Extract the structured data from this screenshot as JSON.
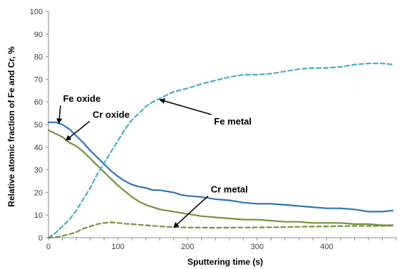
{
  "chart_data": {
    "type": "line",
    "xlabel": "Sputtering time (s)",
    "ylabel": "Relative atomic fraction of Fe and Cr, %",
    "xlim": [
      0,
      500
    ],
    "ylim": [
      0,
      100
    ],
    "x_ticks": [
      0,
      100,
      200,
      300,
      400
    ],
    "y_ticks": [
      0,
      10,
      20,
      30,
      40,
      50,
      60,
      70,
      80,
      90,
      100
    ],
    "grid": false,
    "legend": "none",
    "series": [
      {
        "name": "Fe oxide",
        "color": "#2e75b6",
        "style": "solid",
        "x": [
          0,
          10,
          20,
          30,
          40,
          50,
          60,
          70,
          80,
          90,
          100,
          110,
          120,
          130,
          140,
          150,
          160,
          170,
          180,
          190,
          200,
          220,
          240,
          260,
          280,
          300,
          320,
          340,
          360,
          380,
          400,
          420,
          440,
          460,
          480,
          495
        ],
        "y": [
          51,
          51,
          50,
          48,
          45,
          42,
          38.5,
          35.5,
          32.5,
          29.5,
          27,
          25,
          23.5,
          22.5,
          22,
          21,
          21,
          20.5,
          20,
          19,
          18.5,
          18,
          17,
          16.5,
          15.5,
          15,
          15,
          14.5,
          14,
          13.5,
          13,
          13,
          12.5,
          11.5,
          11.5,
          12
        ]
      },
      {
        "name": "Cr oxide",
        "color": "#76923c",
        "style": "solid",
        "x": [
          0,
          10,
          20,
          30,
          40,
          50,
          60,
          70,
          80,
          90,
          100,
          110,
          120,
          130,
          140,
          150,
          160,
          170,
          180,
          200,
          220,
          240,
          260,
          280,
          300,
          320,
          340,
          360,
          380,
          400,
          420,
          440,
          460,
          480,
          495
        ],
        "y": [
          47.5,
          46,
          44.5,
          42,
          40.5,
          38,
          35,
          32,
          29,
          26,
          23,
          20.5,
          18,
          16,
          14.5,
          13.5,
          12.5,
          12,
          11.5,
          10.5,
          9.5,
          9,
          8.5,
          8,
          8,
          7.5,
          7,
          7,
          6.5,
          6.5,
          6.5,
          6,
          6,
          5.5,
          5.5
        ]
      },
      {
        "name": "Fe metal",
        "color": "#4bacc6",
        "style": "dashed",
        "x": [
          0,
          10,
          20,
          30,
          40,
          50,
          60,
          70,
          80,
          90,
          100,
          110,
          120,
          130,
          140,
          150,
          160,
          170,
          180,
          200,
          220,
          240,
          260,
          280,
          300,
          320,
          340,
          360,
          380,
          400,
          420,
          440,
          460,
          480,
          495
        ],
        "y": [
          0,
          2,
          5,
          8,
          12,
          17,
          22,
          28,
          33,
          38,
          43,
          48,
          52,
          55,
          58,
          60,
          61.5,
          63,
          64.5,
          66,
          68,
          69.5,
          71,
          72,
          72,
          72.5,
          73.5,
          74.5,
          75,
          75,
          75.5,
          76.5,
          77,
          77,
          76.5
        ]
      },
      {
        "name": "Cr metal",
        "color": "#76923c",
        "style": "dashed",
        "x": [
          0,
          10,
          20,
          30,
          40,
          50,
          60,
          70,
          80,
          90,
          100,
          110,
          120,
          140,
          160,
          180,
          200,
          240,
          280,
          320,
          360,
          400,
          440,
          480,
          495
        ],
        "y": [
          0,
          0.2,
          0.8,
          1.5,
          2.5,
          4,
          5,
          6,
          6.5,
          6.8,
          6.5,
          6.2,
          6,
          5.5,
          5,
          4.7,
          4.5,
          4.4,
          4.5,
          4.6,
          4.8,
          5,
          5.2,
          5.2,
          5.3
        ]
      }
    ],
    "annotations": [
      {
        "text": "Fe oxide",
        "target_series": "Fe oxide",
        "label_pos": [
          48,
          60
        ],
        "arrow_to": [
          15,
          50.5
        ]
      },
      {
        "text": "Cr oxide",
        "target_series": "Cr oxide",
        "label_pos": [
          90,
          53
        ],
        "arrow_to": [
          25,
          43
        ]
      },
      {
        "text": "Fe metal",
        "target_series": "Fe metal",
        "label_pos": [
          265,
          50
        ],
        "arrow_to": [
          160,
          61
        ]
      },
      {
        "text": "Cr metal",
        "target_series": "Cr metal",
        "label_pos": [
          260,
          20
        ],
        "arrow_to": [
          180,
          4.5
        ]
      }
    ]
  }
}
